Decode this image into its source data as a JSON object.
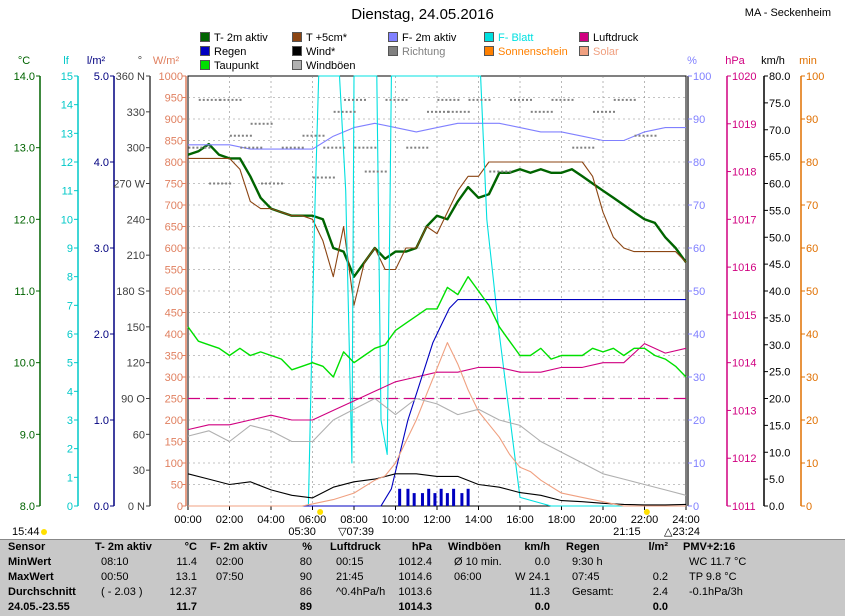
{
  "header": {
    "title": "Dienstag, 24.05.2016",
    "station": "MA - Seckenheim"
  },
  "legend": [
    {
      "label": "T- 2m aktiv",
      "color": "#006400"
    },
    {
      "label": "T +5cm*",
      "color": "#8b4513"
    },
    {
      "label": "F- 2m aktiv",
      "color": "#8080ff"
    },
    {
      "label": "F- Blatt",
      "color": "#00e0e0"
    },
    {
      "label": "Luftdruck",
      "color": "#d00080"
    },
    {
      "label": "Regen",
      "color": "#0000c0"
    },
    {
      "label": "Wind*",
      "color": "#000000"
    },
    {
      "label": "Richtung",
      "color": "#808080"
    },
    {
      "label": "Sonnenschein",
      "color": "#ff8000"
    },
    {
      "label": "Solar",
      "color": "#f0a080"
    },
    {
      "label": "Taupunkt",
      "color": "#00e000"
    },
    {
      "label": "Windböen",
      "color": "#b0b0b0"
    }
  ],
  "axis_units": {
    "temp": "°C",
    "lf": "lf",
    "rain": "l/m²",
    "deg": "°",
    "solar": "W/m²",
    "pct": "%",
    "hpa": "hPa",
    "kmh": "km/h",
    "min": "min"
  },
  "time_marks": {
    "left_time": "15:44",
    "sunrise": "05:30",
    "sunset": "21:15",
    "moonrise": "07:39",
    "moonset": "23:24"
  },
  "chart_data": {
    "type": "line",
    "x_ticks": [
      "00:00",
      "02:00",
      "04:00",
      "06:00",
      "08:00",
      "10:00",
      "12:00",
      "14:00",
      "16:00",
      "18:00",
      "20:00",
      "22:00",
      "24:00"
    ],
    "axes": {
      "temp_c": {
        "range": [
          8.0,
          14.0
        ],
        "ticks": [
          "8.0",
          "9.0",
          "10.0",
          "11.0",
          "12.0",
          "13.0",
          "14.0"
        ]
      },
      "lf": {
        "range": [
          0,
          15
        ],
        "ticks": [
          "0",
          "1",
          "2",
          "3",
          "4",
          "5",
          "6",
          "7",
          "8",
          "9",
          "10",
          "11",
          "12",
          "13",
          "14",
          "15"
        ]
      },
      "rain_lm2": {
        "range": [
          0.0,
          5.0
        ],
        "ticks": [
          "0.0",
          "1.0",
          "2.0",
          "3.0",
          "4.0",
          "5.0"
        ]
      },
      "direction_deg": {
        "range": [
          0,
          360
        ],
        "ticks": [
          "0 N",
          "30",
          "60",
          "90 O",
          "120",
          "150",
          "180 S",
          "210",
          "240",
          "270 W",
          "300",
          "330",
          "360 N"
        ]
      },
      "solar_wm2": {
        "range": [
          0,
          1000
        ],
        "ticks": [
          "0",
          "50",
          "100",
          "150",
          "200",
          "250",
          "300",
          "350",
          "400",
          "450",
          "500",
          "550",
          "600",
          "650",
          "700",
          "750",
          "800",
          "850",
          "900",
          "950",
          "1000"
        ]
      },
      "humidity_pct": {
        "range": [
          0,
          100
        ],
        "ticks": [
          "0",
          "10",
          "20",
          "30",
          "40",
          "50",
          "60",
          "70",
          "80",
          "90",
          "100"
        ]
      },
      "pressure_hpa": {
        "range": [
          1011,
          1020
        ],
        "ticks": [
          "1011",
          "1012",
          "1013",
          "1014",
          "1015",
          "1016",
          "1017",
          "1018",
          "1019",
          "1020"
        ]
      },
      "wind_kmh": {
        "range": [
          0.0,
          80.0
        ],
        "ticks": [
          "0.0",
          "5.0",
          "10.0",
          "15.0",
          "20.0",
          "25.0",
          "30.0",
          "35.0",
          "40.0",
          "45.0",
          "50.0",
          "55.0",
          "60.0",
          "65.0",
          "70.0",
          "75.0",
          "80.0"
        ]
      },
      "sun_min": {
        "range": [
          0,
          100
        ],
        "ticks": [
          "0",
          "10",
          "20",
          "30",
          "40",
          "50",
          "60",
          "70",
          "80",
          "90",
          "100"
        ]
      }
    },
    "series": [
      {
        "name": "T- 2m aktiv",
        "axis": "temp_c",
        "color": "#006400",
        "x": [
          0,
          0.5,
          1,
          1.5,
          2,
          2.5,
          3,
          3.5,
          4,
          4.5,
          5,
          5.5,
          6,
          6.5,
          7,
          7.5,
          8,
          8.5,
          9,
          9.5,
          10,
          10.5,
          11,
          11.5,
          12,
          12.5,
          13,
          13.5,
          14,
          14.5,
          15,
          15.5,
          16,
          16.5,
          17,
          17.5,
          18,
          18.5,
          19,
          19.5,
          20,
          20.5,
          21,
          21.5,
          22,
          22.5,
          23,
          23.5,
          24
        ],
        "y": [
          12.9,
          12.95,
          13.05,
          12.9,
          12.85,
          12.85,
          12.6,
          12.3,
          12.15,
          12.1,
          12.05,
          12.05,
          12.05,
          12.0,
          11.6,
          11.55,
          11.2,
          11.4,
          11.6,
          11.45,
          11.55,
          11.55,
          11.6,
          11.9,
          12.05,
          12.0,
          12.25,
          12.45,
          12.3,
          12.35,
          12.65,
          12.65,
          12.7,
          12.65,
          12.7,
          12.65,
          12.65,
          12.7,
          12.6,
          12.5,
          12.4,
          12.3,
          12.2,
          12.1,
          12.0,
          11.95,
          11.75,
          11.6,
          11.4
        ]
      },
      {
        "name": "T +5cm*",
        "axis": "temp_c",
        "color": "#8b4513",
        "x": [
          0,
          1,
          2,
          2.5,
          3,
          3.5,
          4,
          4.5,
          5,
          5.5,
          6,
          6.5,
          7,
          7.5,
          8,
          8.5,
          9,
          9.5,
          10,
          10.5,
          11,
          11.5,
          12,
          12.5,
          13,
          13.5,
          14,
          14.5,
          15,
          16,
          17,
          18,
          19,
          19.5,
          20,
          20.5,
          21,
          21.5,
          22,
          22.5,
          23,
          23.5,
          24
        ],
        "y": [
          12.85,
          12.85,
          12.85,
          12.7,
          12.25,
          12.15,
          12.15,
          12.1,
          12.05,
          12.05,
          12.0,
          11.7,
          11.2,
          11.9,
          10.8,
          11.4,
          11.6,
          11.3,
          11.3,
          11.6,
          11.6,
          11.9,
          11.8,
          12.1,
          12.4,
          12.6,
          12.6,
          12.8,
          12.8,
          12.8,
          12.8,
          12.8,
          12.8,
          12.6,
          12.1,
          11.75,
          11.6,
          11.55,
          11.55,
          11.55,
          11.55,
          11.55,
          11.4
        ]
      },
      {
        "name": "F- 2m aktiv",
        "axis": "humidity_pct",
        "color": "#8080ff",
        "x": [
          0,
          1,
          2,
          3,
          4,
          5,
          6,
          7,
          8,
          9,
          10,
          11,
          12,
          13,
          14,
          15,
          16,
          17,
          18,
          19,
          20,
          21,
          22,
          23,
          24
        ],
        "y": [
          84,
          84,
          84,
          83,
          83,
          83,
          83,
          86,
          88,
          89,
          88,
          87,
          88,
          89,
          89,
          89,
          88,
          87,
          87,
          86,
          85,
          85,
          87,
          88,
          88
        ]
      },
      {
        "name": "F- Blatt",
        "axis": "lf",
        "color": "#00e0e0",
        "x": [
          0,
          5.8,
          6.1,
          6.3,
          7.3,
          7.6,
          7.9,
          8.0,
          9.1,
          9.3,
          9.6,
          9.8,
          10.0,
          10.2,
          14.1,
          14.4,
          15.0,
          16.0,
          17.5,
          18,
          24
        ],
        "y": [
          0,
          0,
          10,
          15,
          15,
          11,
          1.5,
          15,
          15,
          3,
          1.8,
          15,
          15,
          15,
          15,
          10,
          6,
          0.3,
          0,
          0,
          0
        ]
      },
      {
        "name": "Luftdruck",
        "axis": "pressure_hpa",
        "color": "#d00080",
        "x": [
          0,
          1,
          2,
          3,
          4,
          5,
          6,
          7,
          8,
          9,
          10,
          11,
          12,
          13,
          14,
          15,
          16,
          17,
          18,
          19,
          20,
          21,
          22,
          23,
          24
        ],
        "y": [
          1012.6,
          1012.7,
          1012.7,
          1012.8,
          1012.9,
          1012.8,
          1012.8,
          1013.0,
          1013.2,
          1013.4,
          1013.6,
          1013.7,
          1013.8,
          1013.8,
          1013.9,
          1013.9,
          1013.8,
          1013.8,
          1013.9,
          1013.9,
          1014.0,
          1014.0,
          1014.4,
          1014.2,
          1014.3
        ]
      },
      {
        "name": "Regen",
        "axis": "rain_lm2",
        "color": "#0000c0",
        "x": [
          0,
          9.3,
          9.8,
          10.2,
          10.6,
          11.0,
          11.4,
          11.8,
          12.2,
          12.6,
          13.0,
          13.5,
          14.5,
          24
        ],
        "y": [
          0,
          0,
          0.2,
          0.6,
          1.0,
          1.3,
          1.6,
          1.9,
          2.1,
          2.3,
          2.4,
          2.4,
          2.4,
          2.4
        ]
      },
      {
        "name": "Wind*",
        "axis": "wind_kmh",
        "color": "#000000",
        "x": [
          0,
          1,
          2,
          3,
          4,
          5,
          6,
          7,
          8,
          9,
          10,
          11,
          12,
          13,
          14,
          15,
          16,
          17,
          18,
          19,
          20,
          21,
          22,
          23,
          24
        ],
        "y": [
          6,
          5,
          4,
          4.5,
          3,
          2,
          1.5,
          3.5,
          4.5,
          5,
          6,
          6,
          5.5,
          5.5,
          4,
          3.5,
          2.5,
          2,
          1,
          0.8,
          0.5,
          0.3,
          0.2,
          0.2,
          0.3
        ]
      },
      {
        "name": "Taupunkt",
        "axis": "temp_c",
        "color": "#00e000",
        "x": [
          0,
          0.5,
          1,
          1.5,
          2,
          2.5,
          3,
          3.5,
          4,
          4.5,
          5,
          5.5,
          6,
          6.5,
          7,
          7.5,
          8,
          8.5,
          9,
          9.5,
          10,
          10.5,
          11,
          11.5,
          12,
          12.5,
          13,
          13.5,
          14,
          14.5,
          15,
          15.5,
          16,
          16.5,
          17,
          17.5,
          18,
          18.5,
          19,
          19.5,
          20,
          20.5,
          21,
          21.5,
          22,
          22.5,
          23,
          23.5,
          24
        ],
        "y": [
          10.5,
          10.3,
          10.25,
          10.2,
          10.1,
          10.2,
          10.1,
          10.15,
          10.1,
          10.05,
          9.9,
          9.95,
          10.0,
          9.95,
          9.8,
          10.15,
          10.0,
          10.1,
          10.2,
          10.25,
          10.45,
          10.55,
          10.65,
          10.75,
          10.75,
          11.05,
          10.95,
          11.2,
          11.0,
          10.8,
          10.5,
          10.3,
          10.1,
          10.1,
          10.2,
          10.05,
          10.1,
          10.1,
          10.1,
          10.2,
          10.15,
          10.2,
          10.1,
          10.2,
          10.2,
          10.1,
          10.05,
          9.95,
          9.8
        ]
      },
      {
        "name": "Solar",
        "axis": "solar_wm2",
        "color": "#f0a080",
        "x": [
          0,
          5.5,
          6,
          7,
          8,
          9,
          9.5,
          10,
          10.5,
          11,
          11.5,
          12,
          12.5,
          13,
          13.5,
          14,
          14.5,
          15,
          15.5,
          16,
          16.5,
          17,
          18,
          19,
          20,
          20.5,
          21,
          24
        ],
        "y": [
          0,
          0,
          5,
          15,
          30,
          60,
          70,
          100,
          150,
          200,
          260,
          320,
          380,
          330,
          270,
          220,
          190,
          160,
          120,
          90,
          80,
          60,
          30,
          20,
          10,
          5,
          0,
          0
        ]
      },
      {
        "name": "Windböen",
        "axis": "wind_kmh",
        "color": "#b0b0b0",
        "x": [
          0,
          1,
          2,
          3,
          4,
          5,
          6,
          7,
          8,
          9,
          10,
          11,
          12,
          13,
          14,
          15,
          16,
          17,
          18,
          19,
          20,
          21,
          22,
          23,
          24
        ],
        "y": [
          13,
          14,
          12,
          15,
          14,
          12,
          12,
          16,
          18,
          20,
          17,
          20,
          19,
          17,
          18,
          16,
          15,
          12,
          10,
          8,
          6,
          5,
          4,
          3,
          2
        ]
      },
      {
        "name": "Richtung",
        "axis": "direction_deg",
        "color": "#808080",
        "dotted": true,
        "x": [
          0.5,
          1,
          1.5,
          2,
          2.5,
          3,
          3.5,
          4,
          5,
          6,
          6.5,
          7,
          7.5,
          8,
          8.5,
          9,
          10,
          11,
          12,
          12.5,
          13,
          14,
          15,
          16,
          17,
          18,
          19,
          20,
          21,
          22
        ],
        "y": [
          300,
          340,
          270,
          340,
          310,
          300,
          320,
          270,
          300,
          310,
          275,
          300,
          330,
          340,
          300,
          280,
          340,
          300,
          330,
          340,
          330,
          340,
          280,
          340,
          330,
          340,
          300,
          330,
          340,
          310
        ]
      }
    ],
    "sunshine_bars": {
      "name": "Sonnenschein",
      "axis": "sun_min",
      "color": "#0000c0",
      "x": [
        10.2,
        10.6,
        10.9,
        11.3,
        11.6,
        11.9,
        12.2,
        12.5,
        12.8,
        13.2,
        13.5
      ],
      "y": [
        4,
        4,
        3,
        3,
        4,
        3,
        4,
        3,
        4,
        3,
        4
      ]
    }
  },
  "stats": [
    {
      "head": "Sensor",
      "unit": "",
      "rows": [
        [
          "MinWert",
          ""
        ],
        [
          "MaxWert",
          ""
        ],
        [
          "Durchschnitt",
          ""
        ],
        [
          "24.05.-23.55",
          ""
        ]
      ]
    },
    {
      "head": "T- 2m aktiv",
      "unit": "°C",
      "rows": [
        [
          "08:10",
          "11.4"
        ],
        [
          "00:50",
          "13.1"
        ],
        [
          "( - 2.03 )",
          "12.37"
        ],
        [
          "",
          "11.7"
        ]
      ]
    },
    {
      "head": "F- 2m aktiv",
      "unit": "%",
      "rows": [
        [
          "02:00",
          "80"
        ],
        [
          "07:50",
          "90"
        ],
        [
          "",
          "86"
        ],
        [
          "",
          "89"
        ]
      ]
    },
    {
      "head": "Luftdruck",
      "unit": "hPa",
      "rows": [
        [
          "00:15",
          "1012.4"
        ],
        [
          "21:45",
          "1014.6"
        ],
        [
          "^0.4hPa/h",
          "1013.6"
        ],
        [
          "",
          "1014.3"
        ]
      ]
    },
    {
      "head": "Windböen",
      "unit": "km/h",
      "rows": [
        [
          "Ø 10 min.",
          "0.0"
        ],
        [
          "06:00",
          "W 24.1"
        ],
        [
          "",
          "11.3"
        ],
        [
          "",
          "0.0"
        ]
      ]
    },
    {
      "head": "Regen",
      "unit": "l/m²",
      "rows": [
        [
          "9:30 h",
          ""
        ],
        [
          "07:45",
          "0.2"
        ],
        [
          "Gesamt:",
          "2.4"
        ],
        [
          "",
          "0.0"
        ]
      ]
    },
    {
      "head": "PMV+2:16",
      "unit": "",
      "rows": [
        [
          "WC 11.7 °C",
          ""
        ],
        [
          "TP 9.8 °C",
          ""
        ],
        [
          "-0.1hPa/3h",
          ""
        ],
        [
          "",
          ""
        ]
      ]
    }
  ]
}
